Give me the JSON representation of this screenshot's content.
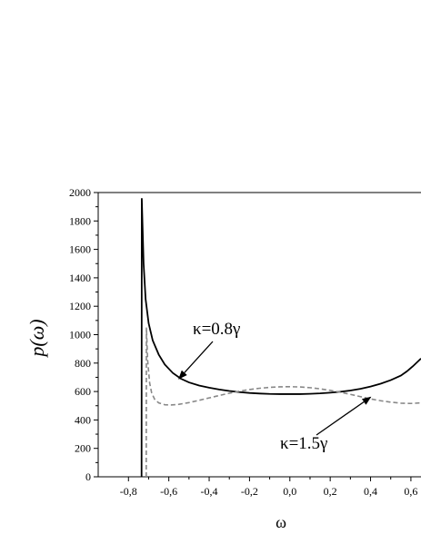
{
  "chart_data": {
    "type": "line",
    "xlabel": "ω",
    "ylabel": "p(ω)",
    "xlim": [
      -0.95,
      0.65
    ],
    "ylim": [
      0,
      2000
    ],
    "x_ticks": [
      -0.8,
      -0.6,
      -0.4,
      -0.2,
      0.0,
      0.2,
      0.4,
      0.6
    ],
    "x_tick_labels": [
      "-0,8",
      "-0,6",
      "-0,4",
      "-0,2",
      "0,0",
      "0,2",
      "0,4",
      "0,6"
    ],
    "y_ticks": [
      0,
      200,
      400,
      600,
      800,
      1000,
      1200,
      1400,
      1600,
      1800,
      2000
    ],
    "y_tick_labels": [
      "0",
      "200",
      "400",
      "600",
      "800",
      "1000",
      "1200",
      "1400",
      "1600",
      "1800",
      "2000"
    ],
    "grid": false,
    "series": [
      {
        "name": "κ=0.8γ",
        "color": "#000000",
        "style": "solid",
        "points": [
          [
            -0.735,
            0
          ],
          [
            -0.734,
            1960
          ],
          [
            -0.725,
            1500
          ],
          [
            -0.715,
            1250
          ],
          [
            -0.7,
            1080
          ],
          [
            -0.68,
            960
          ],
          [
            -0.65,
            860
          ],
          [
            -0.62,
            790
          ],
          [
            -0.58,
            730
          ],
          [
            -0.54,
            690
          ],
          [
            -0.5,
            664
          ],
          [
            -0.45,
            642
          ],
          [
            -0.4,
            627
          ],
          [
            -0.35,
            614
          ],
          [
            -0.3,
            604
          ],
          [
            -0.25,
            596
          ],
          [
            -0.2,
            590
          ],
          [
            -0.15,
            586
          ],
          [
            -0.1,
            583
          ],
          [
            -0.05,
            582
          ],
          [
            0.0,
            582
          ],
          [
            0.05,
            582
          ],
          [
            0.1,
            584
          ],
          [
            0.15,
            587
          ],
          [
            0.2,
            592
          ],
          [
            0.25,
            598
          ],
          [
            0.3,
            607
          ],
          [
            0.35,
            619
          ],
          [
            0.4,
            635
          ],
          [
            0.45,
            655
          ],
          [
            0.5,
            680
          ],
          [
            0.55,
            712
          ],
          [
            0.58,
            742
          ],
          [
            0.61,
            778
          ],
          [
            0.63,
            805
          ],
          [
            0.65,
            832
          ]
        ]
      },
      {
        "name": "κ=1.5γ",
        "color": "#888888",
        "style": "dashed",
        "points": [
          [
            -0.712,
            0
          ],
          [
            -0.711,
            1050
          ],
          [
            -0.705,
            820
          ],
          [
            -0.695,
            660
          ],
          [
            -0.685,
            590
          ],
          [
            -0.67,
            545
          ],
          [
            -0.65,
            520
          ],
          [
            -0.62,
            507
          ],
          [
            -0.59,
            505
          ],
          [
            -0.55,
            510
          ],
          [
            -0.5,
            522
          ],
          [
            -0.45,
            538
          ],
          [
            -0.4,
            555
          ],
          [
            -0.35,
            572
          ],
          [
            -0.3,
            588
          ],
          [
            -0.25,
            602
          ],
          [
            -0.2,
            614
          ],
          [
            -0.15,
            623
          ],
          [
            -0.1,
            629
          ],
          [
            -0.05,
            633
          ],
          [
            0.0,
            634
          ],
          [
            0.05,
            632
          ],
          [
            0.1,
            627
          ],
          [
            0.15,
            619
          ],
          [
            0.2,
            608
          ],
          [
            0.25,
            595
          ],
          [
            0.3,
            580
          ],
          [
            0.35,
            564
          ],
          [
            0.4,
            548
          ],
          [
            0.45,
            535
          ],
          [
            0.5,
            525
          ],
          [
            0.55,
            518
          ],
          [
            0.6,
            516
          ],
          [
            0.65,
            520
          ]
        ]
      }
    ],
    "annotations": [
      {
        "text": "κ=0.8γ",
        "target": [
          -0.55,
          690
        ]
      },
      {
        "text": "κ=1.5γ",
        "target": [
          0.4,
          560
        ]
      }
    ]
  }
}
